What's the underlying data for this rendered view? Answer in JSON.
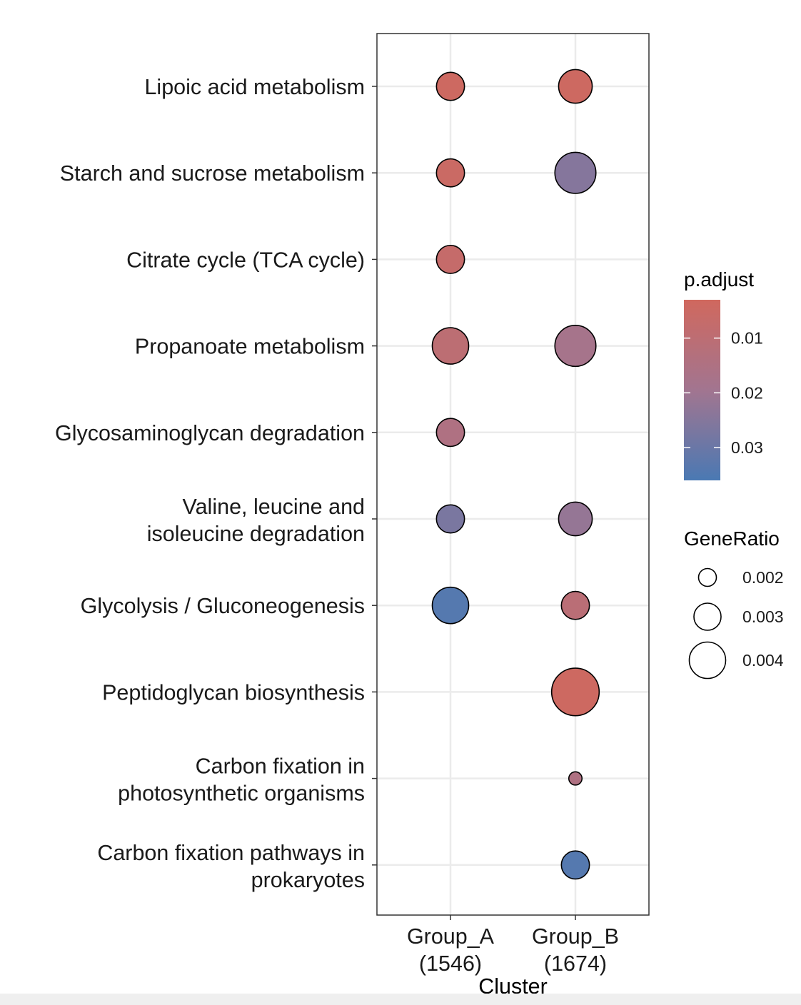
{
  "chart_data": {
    "type": "scatter",
    "xlabel": "Cluster",
    "ylabel": "",
    "x_categories": [
      {
        "line1": "Group_A",
        "line2": "(1546)"
      },
      {
        "line1": "Group_B",
        "line2": "(1674)"
      }
    ],
    "y_categories": [
      {
        "line1": "Lipoic acid metabolism",
        "line2": ""
      },
      {
        "line1": "Starch and sucrose metabolism",
        "line2": ""
      },
      {
        "line1": "Citrate cycle (TCA cycle)",
        "line2": ""
      },
      {
        "line1": "Propanoate metabolism",
        "line2": ""
      },
      {
        "line1": "Glycosaminoglycan degradation",
        "line2": ""
      },
      {
        "line1": "Valine, leucine and",
        "line2": "isoleucine degradation"
      },
      {
        "line1": "Glycolysis / Gluconeogenesis",
        "line2": ""
      },
      {
        "line1": "Peptidoglycan biosynthesis",
        "line2": ""
      },
      {
        "line1": "Carbon fixation in",
        "line2": "photosynthetic organisms"
      },
      {
        "line1": "Carbon fixation pathways in",
        "line2": "prokaryotes"
      }
    ],
    "points": [
      {
        "cluster": 0,
        "term": 0,
        "gene_ratio": 0.0031,
        "p_adjust": 0.004
      },
      {
        "cluster": 1,
        "term": 0,
        "gene_ratio": 0.0037,
        "p_adjust": 0.004
      },
      {
        "cluster": 0,
        "term": 1,
        "gene_ratio": 0.0031,
        "p_adjust": 0.005
      },
      {
        "cluster": 1,
        "term": 1,
        "gene_ratio": 0.0045,
        "p_adjust": 0.025
      },
      {
        "cluster": 0,
        "term": 2,
        "gene_ratio": 0.0031,
        "p_adjust": 0.007
      },
      {
        "cluster": 0,
        "term": 3,
        "gene_ratio": 0.004,
        "p_adjust": 0.01
      },
      {
        "cluster": 1,
        "term": 3,
        "gene_ratio": 0.0045,
        "p_adjust": 0.018
      },
      {
        "cluster": 0,
        "term": 4,
        "gene_ratio": 0.0031,
        "p_adjust": 0.015
      },
      {
        "cluster": 0,
        "term": 5,
        "gene_ratio": 0.0031,
        "p_adjust": 0.027
      },
      {
        "cluster": 1,
        "term": 5,
        "gene_ratio": 0.0037,
        "p_adjust": 0.022
      },
      {
        "cluster": 0,
        "term": 6,
        "gene_ratio": 0.004,
        "p_adjust": 0.034
      },
      {
        "cluster": 1,
        "term": 6,
        "gene_ratio": 0.0031,
        "p_adjust": 0.011
      },
      {
        "cluster": 1,
        "term": 7,
        "gene_ratio": 0.0052,
        "p_adjust": 0.004
      },
      {
        "cluster": 1,
        "term": 8,
        "gene_ratio": 0.0015,
        "p_adjust": 0.015
      },
      {
        "cluster": 1,
        "term": 9,
        "gene_ratio": 0.0031,
        "p_adjust": 0.034
      }
    ],
    "color_legend": {
      "title": "p.adjust",
      "min": 0.003,
      "max": 0.036,
      "ticks": [
        0.01,
        0.02,
        0.03
      ],
      "tick_labels": [
        "0.01",
        "0.02",
        "0.03"
      ],
      "color_low": "#d0685e",
      "color_mid": "#a27590",
      "color_high": "#4a79b3"
    },
    "size_legend": {
      "title": "GeneRatio",
      "values": [
        0.002,
        0.003,
        0.004
      ],
      "labels": [
        "0.002",
        "0.003",
        "0.004"
      ]
    },
    "grid": true,
    "legend_position": "right"
  }
}
